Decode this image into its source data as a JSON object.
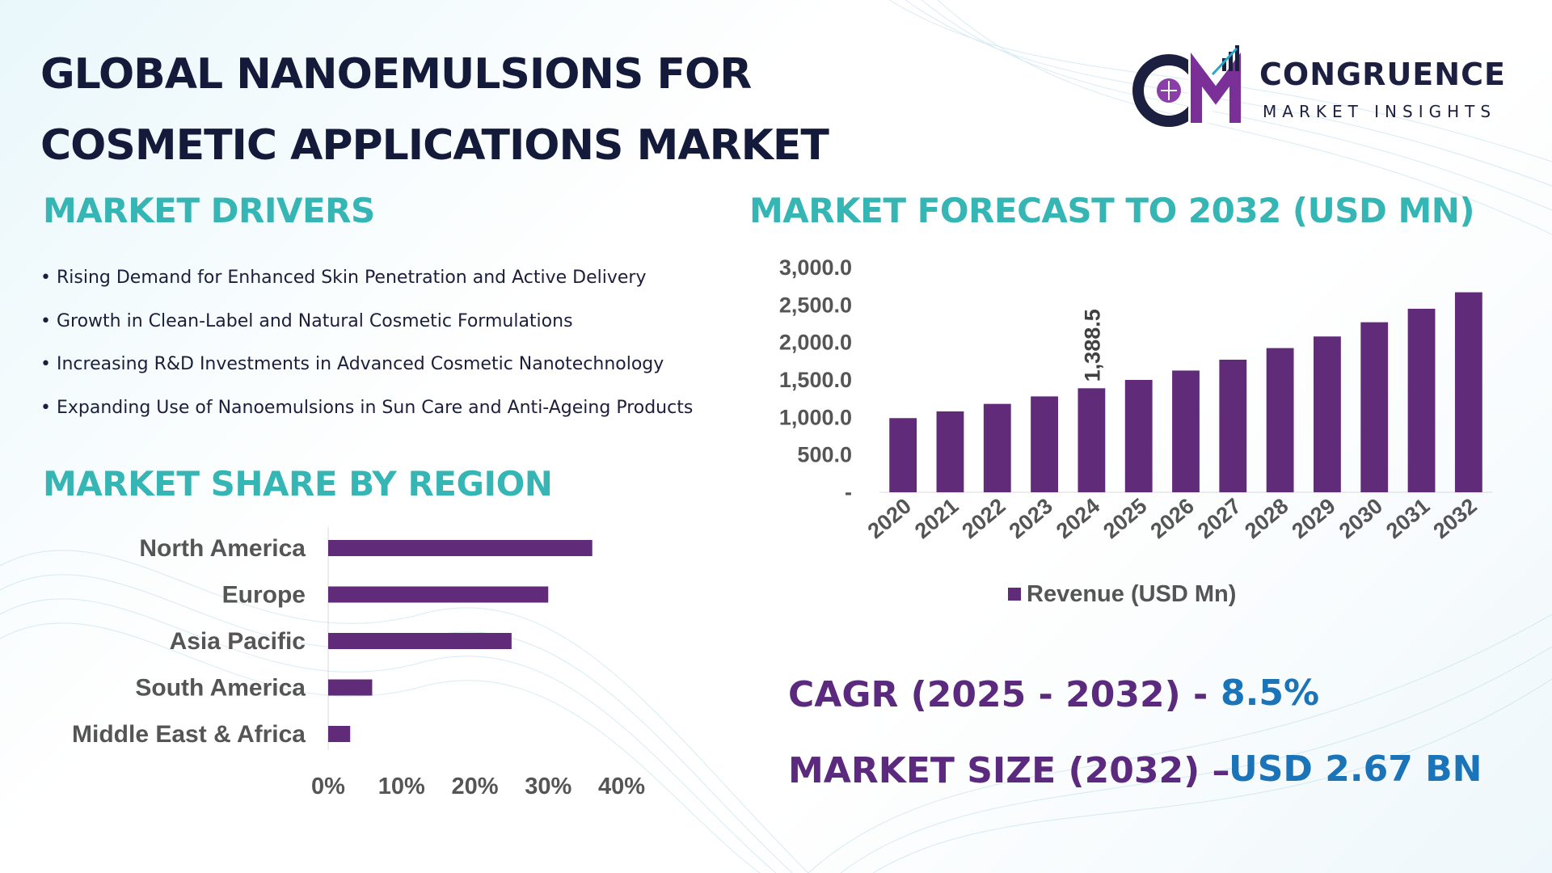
{
  "title_line1": "GLOBAL NANOEMULSIONS FOR",
  "title_line2": "COSMETIC APPLICATIONS MARKET",
  "logo": {
    "name": "CONGRUENCE",
    "subtitle": "MARKET INSIGHTS",
    "monogram": "CM"
  },
  "sections": {
    "drivers_title": "MARKET DRIVERS",
    "forecast_title": "MARKET FORECAST TO 2032 (USD MN)",
    "region_title": "MARKET SHARE BY REGION"
  },
  "drivers": [
    "Rising Demand for Enhanced Skin Penetration and Active Delivery",
    "Growth in Clean-Label and Natural Cosmetic Formulations",
    "Increasing R&D Investments in Advanced Cosmetic Nanotechnology",
    "Expanding Use of Nanoemulsions in Sun Care and Anti-Ageing Products"
  ],
  "stats": {
    "cagr_label": "CAGR (2025 - 2032) -",
    "cagr_value": "8.5%",
    "size_label": "MARKET SIZE (2032) –",
    "size_value": "USD 2.67 BN"
  },
  "colors": {
    "bar": "#602c7a",
    "accent_teal": "#35b5b3",
    "accent_blue": "#1b73b8",
    "label_purple": "#5b2a7e"
  },
  "chart_data": [
    {
      "type": "bar",
      "categories": [
        "2020",
        "2021",
        "2022",
        "2023",
        "2024",
        "2025",
        "2026",
        "2027",
        "2028",
        "2029",
        "2030",
        "2031",
        "2032"
      ],
      "series": [
        {
          "name": "Revenue (USD Mn)",
          "values": [
            990,
            1080,
            1180,
            1280,
            1388.5,
            1500,
            1625,
            1770,
            1925,
            2080,
            2270,
            2450,
            2670
          ]
        }
      ],
      "data_labels": [
        {
          "category": "2024",
          "text": "1,388.5"
        }
      ],
      "yticks": [
        "-",
        "500.0",
        "1,000.0",
        "1,500.0",
        "2,000.0",
        "2,500.0",
        "3,000.0"
      ],
      "ylim": [
        0,
        3000
      ],
      "legend": "bottom",
      "grid": false
    },
    {
      "type": "bar",
      "orientation": "horizontal",
      "categories": [
        "North America",
        "Europe",
        "Asia Pacific",
        "South America",
        "Middle East & Africa"
      ],
      "values": [
        36,
        30,
        25,
        6,
        3
      ],
      "xticks": [
        "0%",
        "10%",
        "20%",
        "30%",
        "40%"
      ],
      "xlim": [
        0,
        40
      ],
      "grid": false
    }
  ]
}
